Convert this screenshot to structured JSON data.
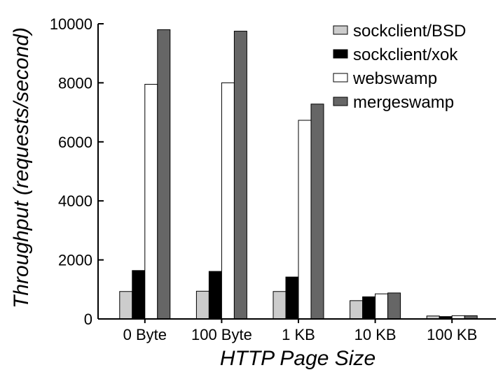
{
  "chart_data": {
    "type": "bar",
    "title": "",
    "xlabel": "HTTP Page Size",
    "ylabel": "Throughput (requests/second)",
    "categories": [
      "0 Byte",
      "100 Byte",
      "1 KB",
      "10 KB",
      "100 KB"
    ],
    "ylim": [
      0,
      10000
    ],
    "yticks": [
      0,
      2000,
      4000,
      6000,
      8000,
      10000
    ],
    "grid": false,
    "legend_position": "top-right",
    "series": [
      {
        "name": "sockclient/BSD",
        "color": "#cccccc",
        "values": [
          930,
          940,
          930,
          620,
          100
        ]
      },
      {
        "name": "sockclient/xok",
        "color": "#000000",
        "values": [
          1640,
          1610,
          1420,
          750,
          80
        ]
      },
      {
        "name": "webswamp",
        "color": "#ffffff",
        "values": [
          7950,
          8000,
          6730,
          850,
          110
        ]
      },
      {
        "name": "mergeswamp",
        "color": "#666666",
        "values": [
          9800,
          9750,
          7280,
          880,
          110
        ]
      }
    ]
  }
}
